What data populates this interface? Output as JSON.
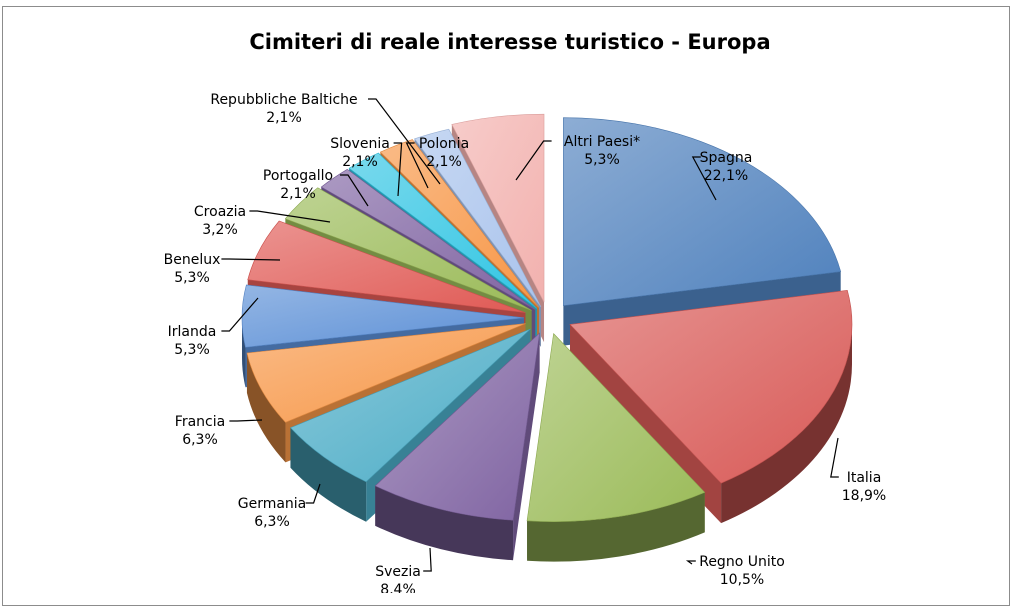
{
  "chart_data": {
    "type": "pie",
    "title": "Cimiteri di reale interesse turistico - Europa",
    "slices": [
      {
        "label": "Spagna",
        "value": 22.1,
        "display": "22,1%",
        "color": "#4f81bd"
      },
      {
        "label": "Italia",
        "value": 18.9,
        "display": "18,9%",
        "color": "#d85a57"
      },
      {
        "label": "Regno Unito",
        "value": 10.5,
        "display": "10,5%",
        "color": "#9bbb59"
      },
      {
        "label": "Svezia",
        "value": 8.4,
        "display": "8,4%",
        "color": "#8064a2"
      },
      {
        "label": "Germania",
        "value": 6.3,
        "display": "6,3%",
        "color": "#4bacc6"
      },
      {
        "label": "Francia",
        "value": 6.3,
        "display": "6,3%",
        "color": "#f79646"
      },
      {
        "label": "Irlanda",
        "value": 5.3,
        "display": "5,3%",
        "color": "#5b8fd6"
      },
      {
        "label": "Benelux",
        "value": 5.3,
        "display": "5,3%",
        "color": "#e05a55"
      },
      {
        "label": "Croazia",
        "value": 3.2,
        "display": "3,2%",
        "color": "#9bbb59"
      },
      {
        "label": "Portogallo",
        "value": 2.1,
        "display": "2,1%",
        "color": "#8064a2"
      },
      {
        "label": "Slovenia",
        "value": 2.1,
        "display": "2,1%",
        "color": "#31c5e3"
      },
      {
        "label": "Polonia",
        "value": 2.1,
        "display": "2,1%",
        "color": "#f79646"
      },
      {
        "label": "Repubbliche Baltiche",
        "value": 2.1,
        "display": "2,1%",
        "color": "#a9c3ec"
      },
      {
        "label": "Altri Paesi*",
        "value": 5.3,
        "display": "5,3%",
        "color": "#f2b1ae"
      }
    ]
  }
}
